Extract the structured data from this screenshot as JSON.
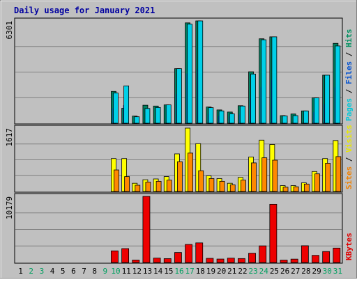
{
  "chart_data": {
    "type": "bar",
    "title": "Daily usage for January 2021",
    "days": [
      "1",
      "2",
      "3",
      "4",
      "5",
      "6",
      "7",
      "8",
      "9",
      "10",
      "11",
      "12",
      "13",
      "14",
      "15",
      "16",
      "17",
      "18",
      "19",
      "20",
      "21",
      "22",
      "23",
      "24",
      "25",
      "26",
      "27",
      "28",
      "29",
      "30",
      "31"
    ],
    "weekend_days": [
      "2",
      "3",
      "9",
      "10",
      "16",
      "17",
      "23",
      "24",
      "30",
      "31"
    ],
    "panels": [
      {
        "id": "hits",
        "max_label": "6301",
        "ymax": 6301,
        "ylabel_parts": [
          {
            "text": "Pages",
            "color": "#00c8d8"
          },
          {
            "text": " / ",
            "color": "#000000"
          },
          {
            "text": "Files",
            "color": "#0050d0"
          },
          {
            "text": " / ",
            "color": "#000000"
          },
          {
            "text": "Hits",
            "color": "#009060"
          }
        ],
        "series": [
          {
            "name": "Hits",
            "color": "#008060",
            "values": [
              0,
              0,
              0,
              0,
              0,
              0,
              0,
              0,
              0,
              1960,
              920,
              440,
              1110,
              1060,
              1130,
              3360,
              6180,
              6301,
              1000,
              820,
              690,
              1080,
              3170,
              5200,
              5320,
              470,
              570,
              760,
              1560,
              2960,
              4920
            ]
          },
          {
            "name": "Files",
            "color": "#0040c0",
            "values": [
              0,
              0,
              0,
              0,
              0,
              0,
              0,
              0,
              0,
              920,
              1110,
              0,
              0,
              0,
              0,
              1800,
              3060,
              3320,
              570,
              450,
              430,
              570,
              1560,
              2220,
              2670,
              0,
              0,
              0,
              690,
              1170,
              2220
            ]
          },
          {
            "name": "Pages",
            "color": "#00d0e8",
            "values": [
              0,
              0,
              0,
              0,
              0,
              0,
              0,
              0,
              0,
              1860,
              2300,
              400,
              910,
              970,
              1130,
              3360,
              6101,
              6301,
              960,
              760,
              580,
              1060,
              3030,
              5140,
              5320,
              450,
              470,
              760,
              1560,
              2960,
              4760
            ]
          }
        ]
      },
      {
        "id": "visits",
        "max_label": "1617",
        "ymax": 1617,
        "ylabel_parts": [
          {
            "text": "Sites",
            "color": "#f08000"
          },
          {
            "text": " / ",
            "color": "#000000"
          },
          {
            "text": "Visits",
            "color": "#e8e800"
          }
        ],
        "series": [
          {
            "name": "Visits",
            "color": "#ffff00",
            "values": [
              0,
              0,
              0,
              0,
              0,
              0,
              0,
              0,
              0,
              840,
              840,
              210,
              300,
              320,
              380,
              960,
              1617,
              1220,
              400,
              330,
              210,
              360,
              880,
              1310,
              1200,
              150,
              150,
              220,
              510,
              840,
              1300
            ]
          },
          {
            "name": "Sites",
            "color": "#ff8800",
            "values": [
              0,
              0,
              0,
              0,
              0,
              0,
              0,
              0,
              0,
              550,
              380,
              160,
              240,
              260,
              290,
              760,
              980,
              530,
              330,
              260,
              170,
              290,
              730,
              860,
              800,
              110,
              120,
              190,
              450,
              720,
              890
            ]
          }
        ]
      },
      {
        "id": "kbytes",
        "max_label": "10179",
        "ymax": 10179,
        "ylabel_parts": [
          {
            "text": "KBytes",
            "color": "#e00000"
          }
        ],
        "series": [
          {
            "name": "KBytes",
            "color": "#ee0000",
            "values": [
              0,
              0,
              0,
              0,
              0,
              0,
              0,
              0,
              0,
              1790,
              2140,
              380,
              10179,
              680,
              600,
              1540,
              2780,
              3020,
              640,
              530,
              670,
              610,
              1430,
              2560,
              8960,
              370,
              520,
              2580,
              1100,
              1690,
              2220
            ]
          }
        ]
      }
    ]
  }
}
